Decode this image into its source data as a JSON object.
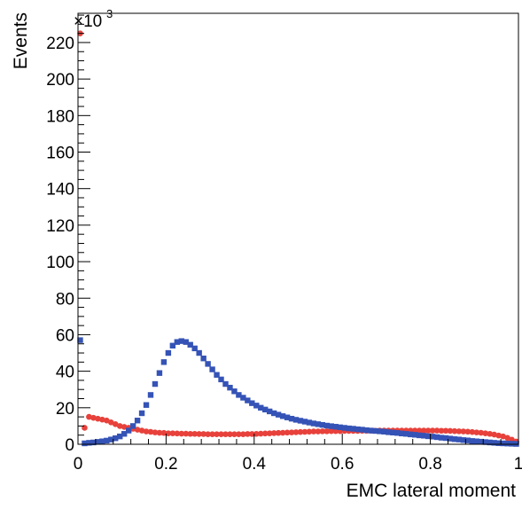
{
  "chart_data": {
    "type": "scatter",
    "xlabel": "EMC lateral moment",
    "ylabel": "Events",
    "y_multiplier_base": "×10",
    "y_multiplier_exp": "3",
    "xlim": [
      0,
      1
    ],
    "ylim": [
      0,
      236
    ],
    "x_ticks": [
      0,
      0.2,
      0.4,
      0.6,
      0.8,
      1
    ],
    "x_tick_labels": [
      "0",
      "0.2",
      "0.4",
      "0.6",
      "0.8",
      "1"
    ],
    "y_ticks": [
      0,
      20,
      40,
      60,
      80,
      100,
      120,
      140,
      160,
      180,
      200,
      220
    ],
    "y_tick_labels": [
      "0",
      "20",
      "40",
      "60",
      "80",
      "100",
      "120",
      "140",
      "160",
      "180",
      "200",
      "220"
    ],
    "grid": false,
    "legend": "none",
    "series": [
      {
        "color": "#e8413b",
        "marker": "circle",
        "x": [
          0.005,
          0.015,
          0.025,
          0.035,
          0.045,
          0.055,
          0.065,
          0.075,
          0.085,
          0.095,
          0.105,
          0.115,
          0.125,
          0.135,
          0.145,
          0.155,
          0.165,
          0.175,
          0.185,
          0.195,
          0.205,
          0.215,
          0.225,
          0.235,
          0.245,
          0.255,
          0.265,
          0.275,
          0.285,
          0.295,
          0.305,
          0.315,
          0.325,
          0.335,
          0.345,
          0.355,
          0.365,
          0.375,
          0.385,
          0.395,
          0.405,
          0.415,
          0.425,
          0.435,
          0.445,
          0.455,
          0.465,
          0.475,
          0.485,
          0.495,
          0.505,
          0.515,
          0.525,
          0.535,
          0.545,
          0.555,
          0.565,
          0.575,
          0.585,
          0.595,
          0.605,
          0.615,
          0.625,
          0.635,
          0.645,
          0.655,
          0.665,
          0.675,
          0.685,
          0.695,
          0.705,
          0.715,
          0.725,
          0.735,
          0.745,
          0.755,
          0.765,
          0.775,
          0.785,
          0.795,
          0.805,
          0.815,
          0.825,
          0.835,
          0.845,
          0.855,
          0.865,
          0.875,
          0.885,
          0.895,
          0.905,
          0.915,
          0.925,
          0.935,
          0.945,
          0.955,
          0.965,
          0.975,
          0.985,
          0.995
        ],
        "y": [
          225,
          9,
          15,
          14.5,
          14,
          13.5,
          13,
          12,
          11,
          10,
          9.5,
          9,
          8.5,
          8,
          7.5,
          7,
          6.8,
          6.5,
          6.3,
          6.2,
          6,
          6,
          5.9,
          5.8,
          5.8,
          5.7,
          5.7,
          5.6,
          5.6,
          5.5,
          5.5,
          5.5,
          5.5,
          5.5,
          5.5,
          5.5,
          5.5,
          5.5,
          5.6,
          5.6,
          5.7,
          5.8,
          5.9,
          6,
          6.1,
          6.2,
          6.3,
          6.4,
          6.5,
          6.6,
          6.7,
          6.8,
          6.9,
          7,
          7,
          7.1,
          7.1,
          7.2,
          7.2,
          7.2,
          7.3,
          7.3,
          7.3,
          7.3,
          7.4,
          7.4,
          7.4,
          7.4,
          7.5,
          7.5,
          7.5,
          7.5,
          7.5,
          7.5,
          7.5,
          7.5,
          7.5,
          7.5,
          7.5,
          7.5,
          7.5,
          7.5,
          7.4,
          7.4,
          7.3,
          7.2,
          7.1,
          7,
          6.9,
          6.7,
          6.5,
          6.3,
          6,
          5.7,
          5.3,
          4.8,
          4.3,
          3.5,
          2.5,
          1.5
        ]
      },
      {
        "color": "#3553b6",
        "marker": "square",
        "x": [
          0.005,
          0.015,
          0.025,
          0.035,
          0.045,
          0.055,
          0.065,
          0.075,
          0.085,
          0.095,
          0.105,
          0.115,
          0.125,
          0.135,
          0.145,
          0.155,
          0.165,
          0.175,
          0.185,
          0.195,
          0.205,
          0.215,
          0.225,
          0.235,
          0.245,
          0.255,
          0.265,
          0.275,
          0.285,
          0.295,
          0.305,
          0.315,
          0.325,
          0.335,
          0.345,
          0.355,
          0.365,
          0.375,
          0.385,
          0.395,
          0.405,
          0.415,
          0.425,
          0.435,
          0.445,
          0.455,
          0.465,
          0.475,
          0.485,
          0.495,
          0.505,
          0.515,
          0.525,
          0.535,
          0.545,
          0.555,
          0.565,
          0.575,
          0.585,
          0.595,
          0.605,
          0.615,
          0.625,
          0.635,
          0.645,
          0.655,
          0.665,
          0.675,
          0.685,
          0.695,
          0.705,
          0.715,
          0.725,
          0.735,
          0.745,
          0.755,
          0.765,
          0.775,
          0.785,
          0.795,
          0.805,
          0.815,
          0.825,
          0.835,
          0.845,
          0.855,
          0.865,
          0.875,
          0.885,
          0.895,
          0.905,
          0.915,
          0.925,
          0.935,
          0.945,
          0.955,
          0.965,
          0.975,
          0.985,
          0.995
        ],
        "y": [
          57,
          0.5,
          0.8,
          1,
          1.3,
          1.6,
          2,
          2.6,
          3.3,
          4.3,
          5.7,
          7.5,
          10,
          13,
          17,
          21.5,
          27,
          33,
          39,
          45,
          50,
          54,
          56,
          56.5,
          56,
          54.5,
          52.5,
          50,
          47,
          44,
          41,
          38,
          35.5,
          33,
          31,
          29,
          27,
          25.5,
          24,
          22.5,
          21.2,
          20,
          19,
          18,
          17,
          16.2,
          15.4,
          14.7,
          14,
          13.4,
          12.9,
          12.4,
          11.9,
          11.4,
          11,
          10.6,
          10.2,
          9.9,
          9.6,
          9.3,
          9,
          8.7,
          8.5,
          8.2,
          8,
          7.7,
          7.5,
          7.3,
          7.1,
          6.9,
          6.6,
          6.4,
          6.2,
          5.9,
          5.7,
          5.4,
          5.2,
          4.9,
          4.7,
          4.4,
          4.2,
          3.9,
          3.6,
          3.4,
          3.1,
          2.8,
          2.6,
          2.3,
          2.1,
          1.8,
          1.6,
          1.4,
          1.2,
          1,
          0.8,
          0.6,
          0.5,
          0.4,
          0.3,
          0.2
        ]
      }
    ]
  }
}
